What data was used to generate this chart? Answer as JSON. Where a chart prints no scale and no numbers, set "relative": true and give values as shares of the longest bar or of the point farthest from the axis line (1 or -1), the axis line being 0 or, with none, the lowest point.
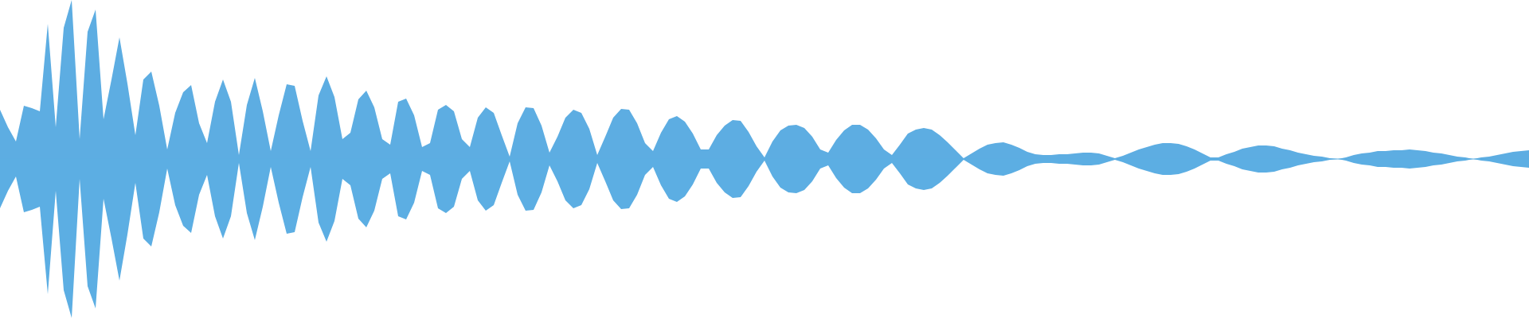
{
  "chart_data": {
    "type": "area",
    "relative": true,
    "categories": [
      null,
      null,
      null,
      null,
      null,
      null,
      null,
      null,
      null,
      null,
      null,
      null,
      null,
      null,
      null,
      null,
      null,
      null,
      null,
      null,
      null,
      null,
      null,
      null,
      null,
      null,
      null,
      null,
      null,
      null,
      null,
      null,
      null,
      null,
      null,
      null,
      null,
      null,
      null,
      null,
      null,
      null,
      null,
      null,
      null,
      null,
      null,
      null,
      null,
      null,
      null,
      null,
      null,
      null,
      null,
      null,
      null,
      null,
      null,
      null,
      null,
      null,
      null,
      null,
      null,
      null,
      null,
      null,
      null,
      null,
      null,
      null,
      null,
      null,
      null,
      null,
      null,
      null,
      null,
      null,
      null,
      null,
      null,
      null,
      null,
      null,
      null,
      null,
      null,
      null,
      null,
      null,
      null,
      null,
      null,
      null,
      null,
      null,
      null,
      null,
      null,
      null,
      null,
      null,
      null,
      null,
      null,
      null,
      null,
      null,
      null,
      null,
      null,
      null,
      null,
      null,
      null,
      null,
      null,
      null,
      null,
      null,
      null,
      null,
      null,
      null,
      null,
      null,
      null,
      null,
      null,
      null,
      null,
      null,
      null,
      null,
      null,
      null,
      null,
      null,
      null,
      null,
      null,
      null,
      null,
      null,
      null,
      null,
      null,
      null,
      null,
      null,
      null,
      null,
      null,
      null,
      null,
      null,
      null,
      null,
      null,
      null,
      null,
      null,
      null,
      null,
      null,
      null,
      null,
      null,
      null,
      null,
      null,
      null,
      null,
      null,
      null,
      null,
      null,
      null,
      null,
      null,
      null,
      null,
      null,
      null,
      null,
      null,
      null,
      null,
      null,
      null,
      null
    ],
    "ref_lines": [
      {
        "axis": "y",
        "value": 0,
        "color": "#5dade2"
      }
    ],
    "series": [
      {
        "color": "#5dade2",
        "values": [
          0.31,
          0.2,
          0.11,
          0.335,
          0.32,
          0.3,
          0.85,
          0.2,
          0.825,
          1,
          0.125,
          0.8,
          0.94,
          0.25,
          0.5,
          0.765,
          0.475,
          0.15,
          0.5,
          0.55,
          0.335,
          0.06,
          0.29,
          0.42,
          0.465,
          0.225,
          0.1,
          0.36,
          0.5,
          0.36,
          0.025,
          0.34,
          0.51,
          0.3,
          0.05,
          0.275,
          0.47,
          0.46,
          0.24,
          0.05,
          0.4,
          0.52,
          0.39,
          0.125,
          0.165,
          0.375,
          0.43,
          0.325,
          0.125,
          0.09,
          0.36,
          0.38,
          0.275,
          0.075,
          0.1,
          0.31,
          0.34,
          0.3,
          0.125,
          0.075,
          0.26,
          0.325,
          0.29,
          0.15,
          0.015,
          0.225,
          0.325,
          0.32,
          0.21,
          0.04,
          0.14,
          0.26,
          0.31,
          0.29,
          0.19,
          0.025,
          0.14,
          0.26,
          0.315,
          0.31,
          0.225,
          0.1,
          0.05,
          0.165,
          0.25,
          0.27,
          0.235,
          0.16,
          0.06,
          0.06,
          0.15,
          0.21,
          0.245,
          0.24,
          0.17,
          0.08,
          0.01,
          0.11,
          0.18,
          0.21,
          0.215,
          0.195,
          0.14,
          0.06,
          0.04,
          0.12,
          0.18,
          0.215,
          0.215,
          0.185,
          0.13,
          0.06,
          0.025,
          0.09,
          0.16,
          0.185,
          0.195,
          0.185,
          0.15,
          0.105,
          0.055,
          0.005,
          0.035,
          0.065,
          0.09,
          0.1,
          0.105,
          0.09,
          0.07,
          0.045,
          0.03,
          0.025,
          0.025,
          0.03,
          0.03,
          0.035,
          0.04,
          0.04,
          0.035,
          0.02,
          0.005,
          0.02,
          0.04,
          0.06,
          0.075,
          0.09,
          0.1,
          0.1,
          0.095,
          0.08,
          0.06,
          0.035,
          0.01,
          0.01,
          0.03,
          0.045,
          0.065,
          0.075,
          0.085,
          0.085,
          0.08,
          0.065,
          0.055,
          0.04,
          0.03,
          0.02,
          0.015,
          0.005,
          0,
          0.01,
          0.025,
          0.035,
          0.04,
          0.05,
          0.05,
          0.055,
          0.055,
          0.06,
          0.055,
          0.05,
          0.04,
          0.035,
          0.025,
          0.015,
          0.01,
          0,
          0.01,
          0.015,
          0.025,
          0.035,
          0.045,
          0.05,
          0.055
        ]
      },
      {
        "color": "#5caee3",
        "values": [
          -0.31,
          -0.2,
          -0.11,
          -0.335,
          -0.32,
          -0.3,
          -0.85,
          -0.2,
          -0.825,
          -1,
          -0.125,
          -0.8,
          -0.94,
          -0.25,
          -0.5,
          -0.765,
          -0.475,
          -0.15,
          -0.5,
          -0.55,
          -0.335,
          -0.06,
          -0.29,
          -0.42,
          -0.465,
          -0.225,
          -0.1,
          -0.36,
          -0.5,
          -0.36,
          -0.025,
          -0.34,
          -0.51,
          -0.3,
          -0.05,
          -0.275,
          -0.47,
          -0.46,
          -0.24,
          -0.05,
          -0.4,
          -0.52,
          -0.39,
          -0.125,
          -0.165,
          -0.375,
          -0.43,
          -0.325,
          -0.125,
          -0.09,
          -0.36,
          -0.38,
          -0.275,
          -0.075,
          -0.1,
          -0.31,
          -0.34,
          -0.3,
          -0.125,
          -0.075,
          -0.26,
          -0.325,
          -0.29,
          -0.15,
          -0.015,
          -0.225,
          -0.325,
          -0.32,
          -0.21,
          -0.04,
          -0.14,
          -0.26,
          -0.31,
          -0.29,
          -0.19,
          -0.025,
          -0.14,
          -0.26,
          -0.315,
          -0.31,
          -0.225,
          -0.1,
          -0.05,
          -0.165,
          -0.25,
          -0.27,
          -0.235,
          -0.16,
          -0.06,
          -0.06,
          -0.15,
          -0.21,
          -0.245,
          -0.24,
          -0.17,
          -0.08,
          -0.01,
          -0.11,
          -0.18,
          -0.21,
          -0.215,
          -0.195,
          -0.14,
          -0.06,
          -0.04,
          -0.12,
          -0.18,
          -0.215,
          -0.215,
          -0.185,
          -0.13,
          -0.06,
          -0.025,
          -0.09,
          -0.16,
          -0.185,
          -0.195,
          -0.185,
          -0.15,
          -0.105,
          -0.055,
          -0.005,
          -0.035,
          -0.065,
          -0.09,
          -0.1,
          -0.105,
          -0.09,
          -0.07,
          -0.045,
          -0.03,
          -0.025,
          -0.025,
          -0.03,
          -0.03,
          -0.035,
          -0.04,
          -0.04,
          -0.035,
          -0.02,
          -0.005,
          -0.02,
          -0.04,
          -0.06,
          -0.075,
          -0.09,
          -0.1,
          -0.1,
          -0.095,
          -0.08,
          -0.06,
          -0.035,
          -0.01,
          -0.01,
          -0.03,
          -0.045,
          -0.065,
          -0.075,
          -0.085,
          -0.085,
          -0.08,
          -0.065,
          -0.055,
          -0.04,
          -0.03,
          -0.02,
          -0.015,
          -0.005,
          0,
          -0.01,
          -0.025,
          -0.035,
          -0.04,
          -0.05,
          -0.05,
          -0.055,
          -0.055,
          -0.06,
          -0.055,
          -0.05,
          -0.04,
          -0.035,
          -0.025,
          -0.015,
          -0.01,
          0,
          -0.01,
          -0.015,
          -0.025,
          -0.035,
          -0.045,
          -0.05,
          -0.055
        ]
      }
    ]
  }
}
